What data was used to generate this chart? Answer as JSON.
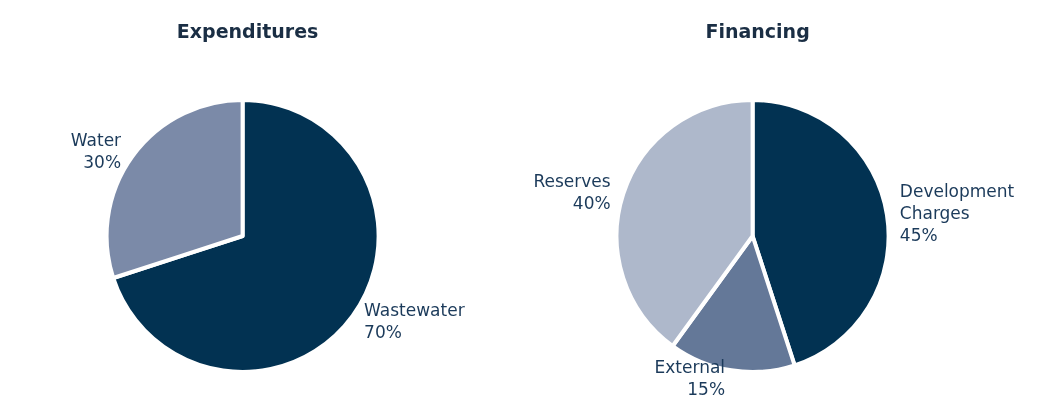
{
  "chart_data": [
    {
      "type": "pie",
      "title": "Expenditures",
      "categories": [
        "Wastewater",
        "Water"
      ],
      "values": [
        70,
        30
      ],
      "value_labels": [
        "70%",
        "30%"
      ],
      "colors": [
        "#023252",
        "#7b8aa8"
      ]
    },
    {
      "type": "pie",
      "title": "Financing",
      "categories": [
        "Development Charges",
        "External",
        "Reserves"
      ],
      "values": [
        45,
        15,
        40
      ],
      "value_labels": [
        "45%",
        "15%",
        "40%"
      ],
      "colors": [
        "#023252",
        "#647898",
        "#aeb8cb"
      ]
    }
  ]
}
